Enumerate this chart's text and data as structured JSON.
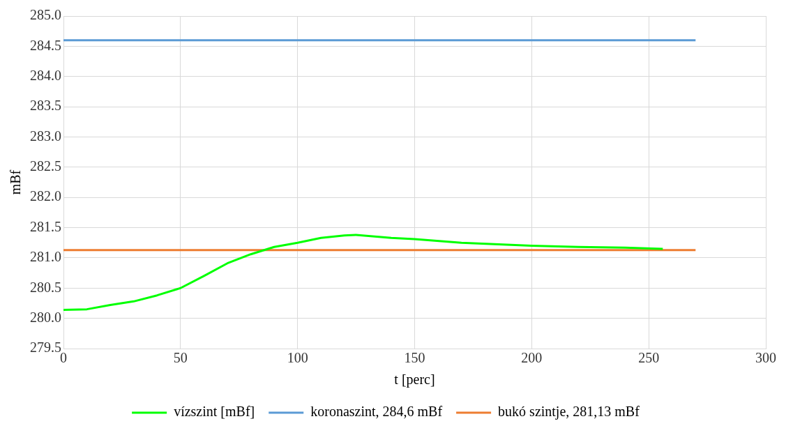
{
  "chart_data": {
    "type": "line",
    "xlabel": "t [perc]",
    "ylabel": "mBf",
    "xlim": [
      0,
      300
    ],
    "xticks": [
      0,
      50,
      100,
      150,
      200,
      250,
      300
    ],
    "ylim": [
      279.5,
      285
    ],
    "yticks": [
      {
        "value": 279.5,
        "label": "279.5"
      },
      {
        "value": 280,
        "label": "280.0"
      },
      {
        "value": 280.5,
        "label": "280.5"
      },
      {
        "value": 281,
        "label": "281.0"
      },
      {
        "value": 281.5,
        "label": "281.5"
      },
      {
        "value": 282,
        "label": "282.0"
      },
      {
        "value": 282.5,
        "label": "282.5"
      },
      {
        "value": 283,
        "label": "283.0"
      },
      {
        "value": 283.5,
        "label": "283.5"
      },
      {
        "value": 284,
        "label": "284.0"
      },
      {
        "value": 284.5,
        "label": "284.5"
      },
      {
        "value": 285,
        "label": "285.0"
      }
    ],
    "grid": true,
    "legend": "bottom",
    "marker": "none",
    "line_style": "solid",
    "series": [
      {
        "name": "vízszint [mBf]",
        "color": "#00ff00",
        "x": [
          0,
          10,
          20,
          30,
          40,
          50,
          60,
          70,
          80,
          90,
          100,
          110,
          120,
          125,
          140,
          150,
          170,
          200,
          220,
          240,
          256
        ],
        "values": [
          280.14,
          280.15,
          280.22,
          280.28,
          280.38,
          280.5,
          280.7,
          280.91,
          281.06,
          281.18,
          281.25,
          281.33,
          281.37,
          281.38,
          281.33,
          281.31,
          281.25,
          281.2,
          281.18,
          281.17,
          281.15
        ]
      },
      {
        "name": "koronaszint, 284,6 mBf",
        "color": "#5b9bd5",
        "x": [
          0,
          270
        ],
        "values": [
          284.6,
          284.6
        ]
      },
      {
        "name": "bukó szintje, 281,13 mBf",
        "color": "#ed7d31",
        "x": [
          0,
          270
        ],
        "values": [
          281.13,
          281.13
        ]
      }
    ]
  }
}
